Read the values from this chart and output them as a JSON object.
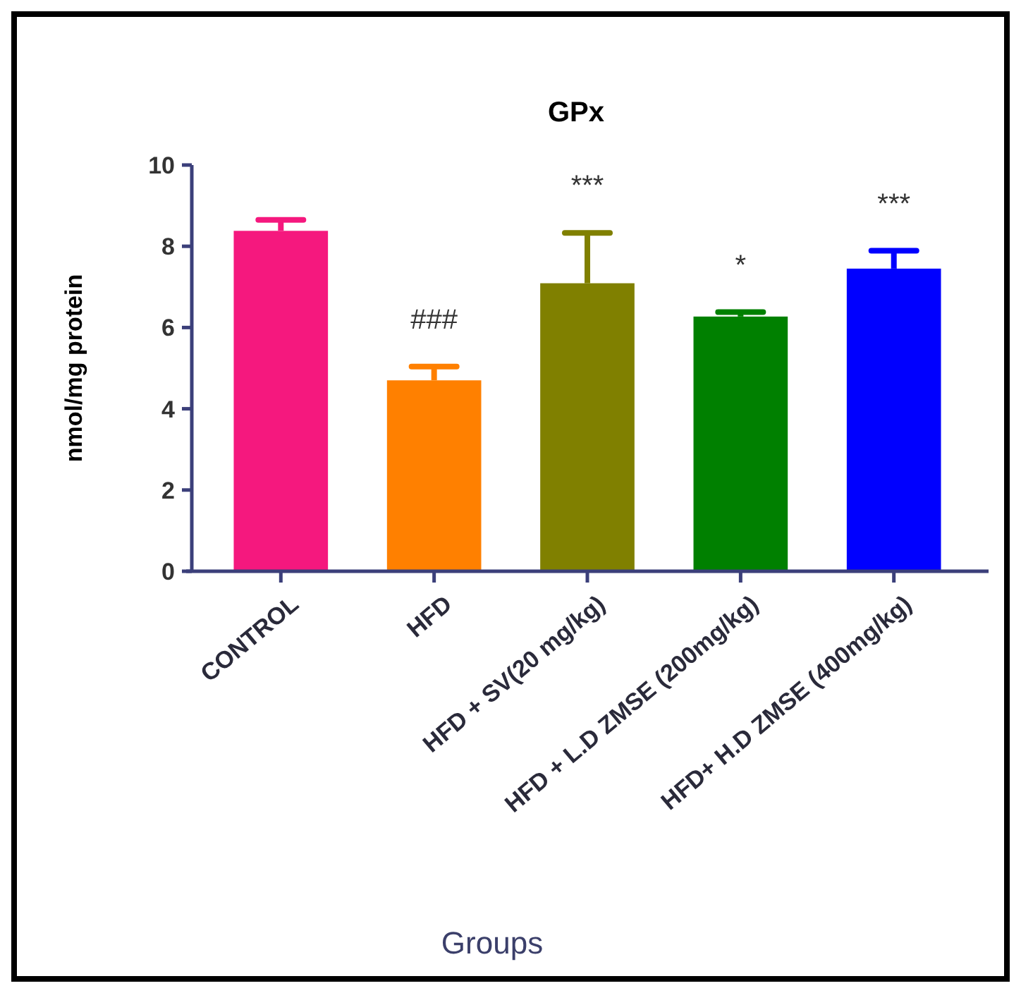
{
  "chart_data": {
    "type": "bar",
    "title": "GPx",
    "xlabel": "Groups",
    "ylabel": "nmol/mg protein",
    "categories": [
      "CONTROL",
      "HFD",
      "HFD + SV(20 mg/kg)",
      "HFD + L.D ZMSE (200mg/kg)",
      "HFD+ H.D ZMSE (400mg/kg)"
    ],
    "values": [
      8.38,
      4.7,
      7.09,
      6.27,
      7.45
    ],
    "colors": [
      "#f5187e",
      "#ff8000",
      "#808000",
      "#008000",
      "#0000ff"
    ],
    "errors": [
      0.27,
      0.34,
      1.24,
      0.11,
      0.44
    ],
    "ylim": [
      0,
      10
    ],
    "yticks": [
      0,
      2,
      4,
      6,
      8,
      10
    ],
    "grid": false,
    "annotations": [
      "###",
      "***",
      "*",
      "***"
    ]
  }
}
